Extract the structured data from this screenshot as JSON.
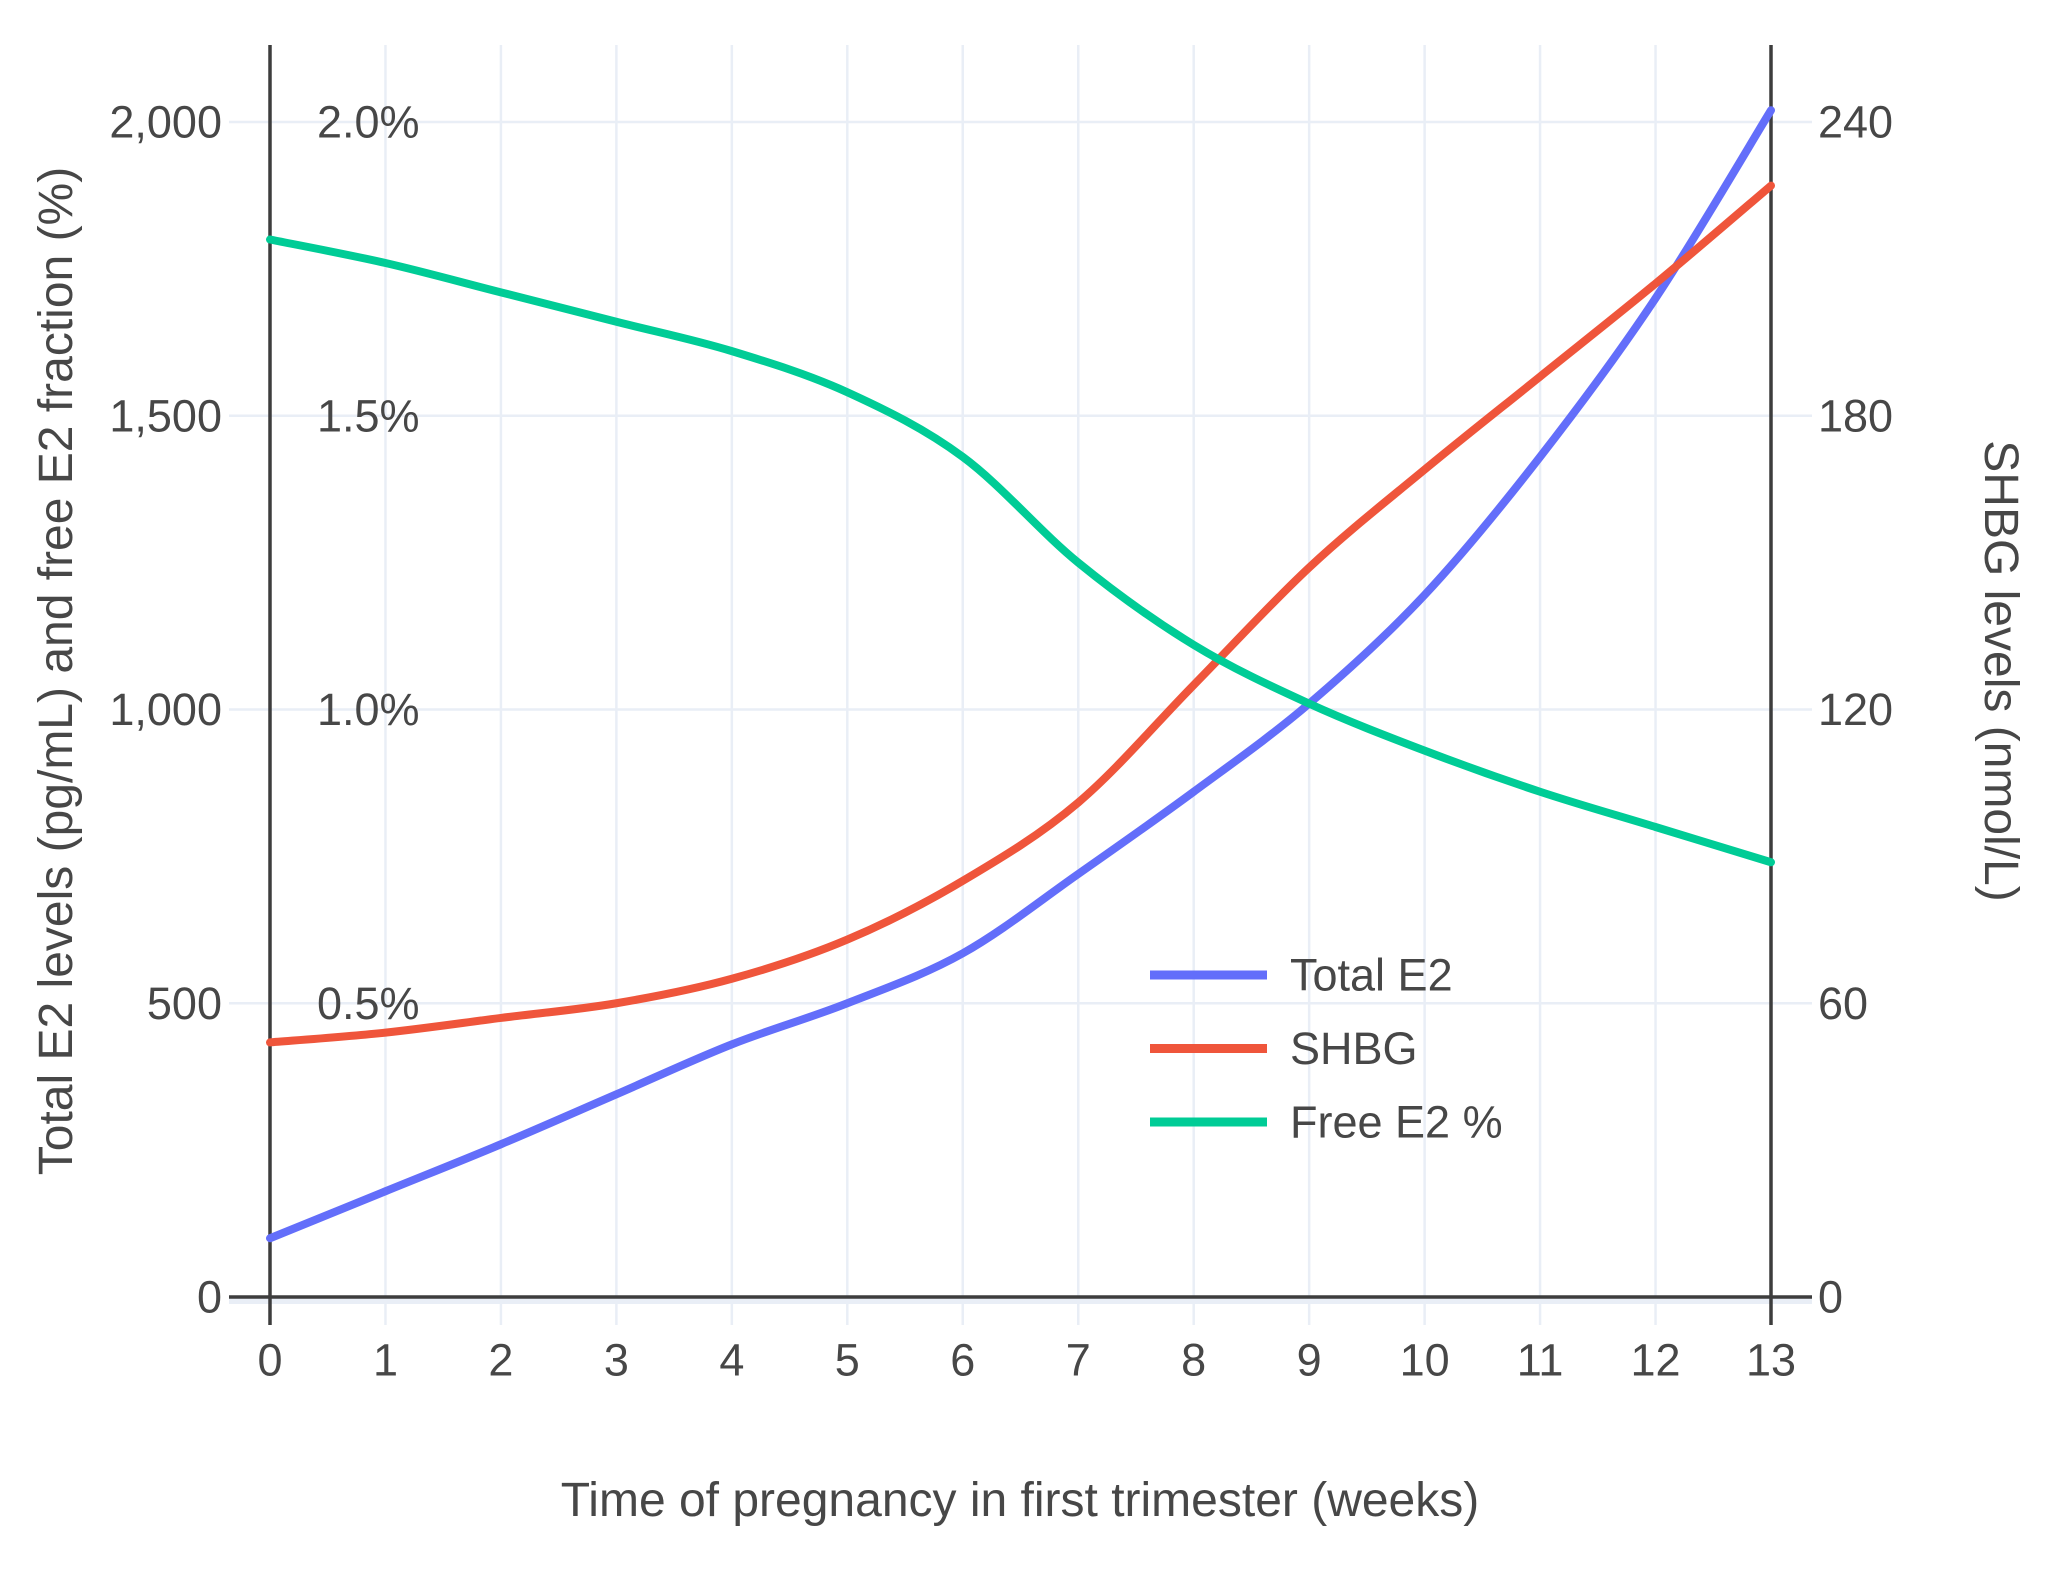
{
  "chart_data": {
    "type": "line",
    "title": "",
    "x": {
      "label": "Time of pregnancy in first trimester (weeks)",
      "tick_values": [
        0,
        1,
        2,
        3,
        4,
        5,
        6,
        7,
        8,
        9,
        10,
        11,
        12,
        13
      ],
      "tick_labels": [
        "0",
        "1",
        "2",
        "3",
        "4",
        "5",
        "6",
        "7",
        "8",
        "9",
        "10",
        "11",
        "12",
        "13"
      ],
      "range": [
        0,
        13
      ]
    },
    "y_left": {
      "label": "Total E2 levels (pg/mL) and free E2 fraction (%)",
      "tick_values": [
        0,
        500,
        1000,
        1500,
        2000
      ],
      "tick_labels": [
        "0",
        "500",
        "1,000",
        "1,500",
        "2,000"
      ],
      "percent_tick_values": [
        500,
        1000,
        1500,
        2000
      ],
      "percent_tick_labels": [
        "0.5%",
        "1.0%",
        "1.5%",
        "2.0%"
      ],
      "range": [
        0,
        2000
      ]
    },
    "y_right": {
      "label": "SHBG levels (nmol/L)",
      "tick_values": [
        0,
        60,
        120,
        180,
        240
      ],
      "tick_labels": [
        "0",
        "60",
        "120",
        "180",
        "240"
      ],
      "range": [
        0,
        240
      ]
    },
    "weeks": [
      0,
      1,
      2,
      3,
      4,
      5,
      6,
      7,
      8,
      9,
      10,
      11,
      12,
      13
    ],
    "series": [
      {
        "name": "Total E2",
        "axis": "left",
        "unit": "pg/mL",
        "color": "#636EFA",
        "values": [
          100,
          180,
          260,
          345,
          430,
          500,
          585,
          720,
          860,
          1010,
          1195,
          1430,
          1700,
          2020
        ]
      },
      {
        "name": "SHBG",
        "axis": "right",
        "unit": "nmol/L",
        "color": "#EF553B",
        "values": [
          52,
          54,
          57,
          60,
          65,
          73,
          85,
          101,
          125,
          149,
          169,
          188,
          207,
          227
        ]
      },
      {
        "name": "Free E2 %",
        "axis": "left_percent",
        "unit": "%",
        "color": "#00CC96",
        "values": [
          1.8,
          1.76,
          1.71,
          1.66,
          1.61,
          1.54,
          1.43,
          1.25,
          1.11,
          1.01,
          0.93,
          0.86,
          0.8,
          0.74
        ]
      }
    ],
    "legend": {
      "position": "inside-right",
      "entries": [
        "Total E2",
        "SHBG",
        "Free E2 %"
      ]
    },
    "grid": true,
    "colors": {
      "background": "#ffffff",
      "grid": "#E9EEF6",
      "axis_line": "#3d3d3d",
      "text": "#474747"
    }
  }
}
